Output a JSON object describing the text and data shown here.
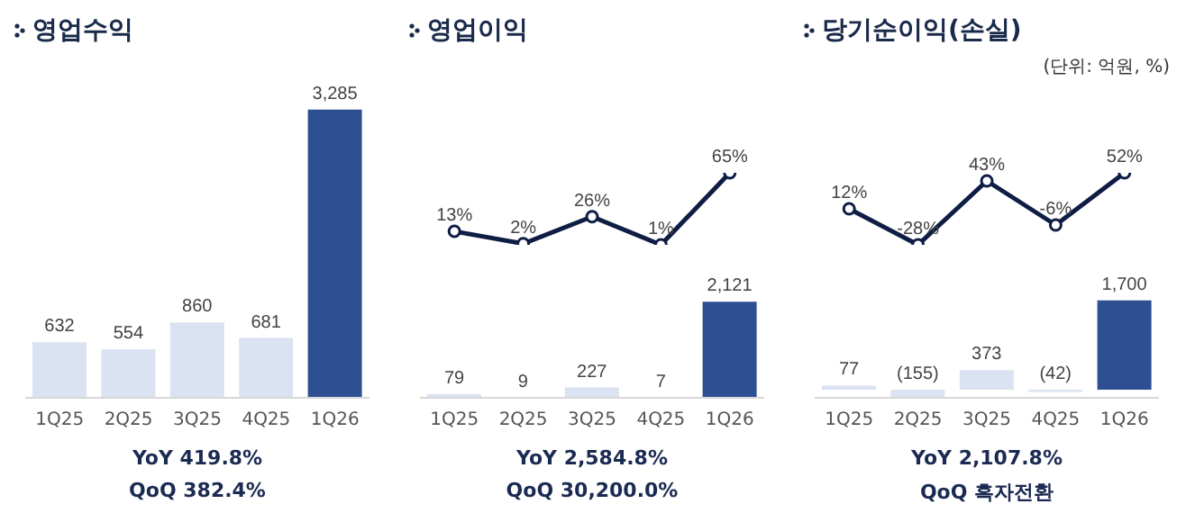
{
  "chart_data": [
    {
      "type": "bar",
      "title": "영업수익",
      "categories": [
        "1Q25",
        "2Q25",
        "3Q25",
        "4Q25",
        "1Q26"
      ],
      "tick_labels": "x",
      "series": [
        {
          "values": [
            632,
            554,
            860,
            681,
            3285
          ],
          "colors": [
            "#dbe3f3",
            "#dbe3f3",
            "#dbe3f3",
            "#dbe3f3",
            "#2e5092"
          ],
          "value_labels": [
            "632",
            "554",
            "860",
            "681",
            "3,285"
          ]
        }
      ],
      "annotations": [
        "YoY 419.8%",
        "QoQ 382.4%"
      ]
    },
    {
      "type": "line",
      "title": "영업이익",
      "categories": [
        null,
        null,
        null,
        null,
        null
      ],
      "tick_labels": false,
      "marker": "circle",
      "series": [
        {
          "color": "#0f1d45",
          "values": [
            13,
            2,
            26,
            1,
            65
          ],
          "value_labels": [
            "13%",
            "2%",
            "26%",
            "1%",
            "65%"
          ]
        }
      ]
    },
    {
      "type": "bar",
      "categories": [
        "1Q25",
        "2Q25",
        "3Q25",
        "4Q25",
        "1Q26"
      ],
      "tick_labels": "x",
      "series": [
        {
          "values": [
            79,
            9,
            227,
            7,
            2121
          ],
          "colors": [
            "#dbe3f3",
            "#dbe3f3",
            "#dbe3f3",
            "#dbe3f3",
            "#2e5092"
          ],
          "value_labels": [
            "79",
            "9",
            "227",
            "7",
            "2,121"
          ]
        }
      ],
      "annotations": [
        "YoY 2,584.8%",
        "QoQ 30,200.0%"
      ]
    },
    {
      "type": "line",
      "title": "당기순이익(손실)",
      "subtitle": "(단위: 억원, %)",
      "categories": [
        null,
        null,
        null,
        null,
        null
      ],
      "tick_labels": false,
      "marker": "circle",
      "series": [
        {
          "color": "#0f1d45",
          "values": [
            12,
            -28,
            43,
            -6,
            52
          ],
          "value_labels": [
            "12%",
            "-28%",
            "43%",
            "-6%",
            "52%"
          ]
        }
      ]
    },
    {
      "type": "bar",
      "categories": [
        "1Q25",
        "2Q25",
        "3Q25",
        "4Q25",
        "1Q26"
      ],
      "tick_labels": "x",
      "series": [
        {
          "values": [
            77,
            -155,
            373,
            -42,
            1700
          ],
          "colors": [
            "#dbe3f3",
            "#dbe3f3",
            "#dbe3f3",
            "#dbe3f3",
            "#2e5092"
          ],
          "value_labels": [
            "77",
            "(155)",
            "373",
            "(42)",
            "1,700"
          ]
        }
      ],
      "annotations": [
        "YoY 2,107.8%",
        "QoQ 흑자전환"
      ]
    }
  ]
}
